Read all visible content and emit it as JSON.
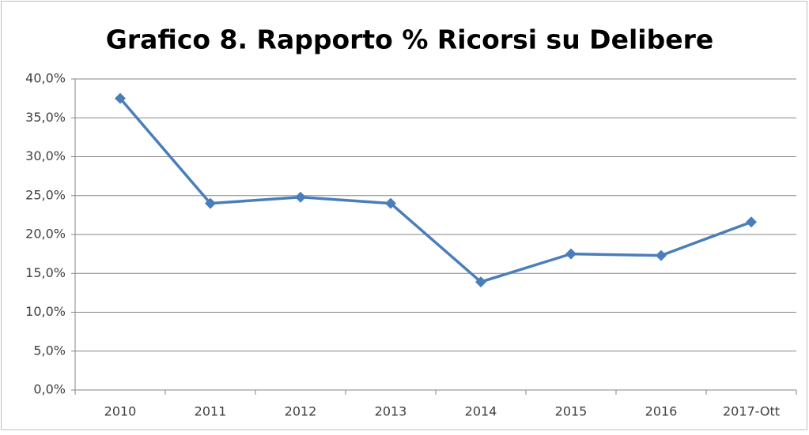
{
  "chart_data": {
    "type": "line",
    "title": "Grafico 8. Rapporto % Ricorsi su Delibere",
    "categories": [
      "2010",
      "2011",
      "2012",
      "2013",
      "2014",
      "2015",
      "2016",
      "2017-Ott"
    ],
    "values": [
      37.5,
      24.0,
      24.8,
      24.0,
      13.9,
      17.5,
      17.3,
      21.6
    ],
    "color": "#4a7ebb",
    "ylim": [
      0,
      40
    ],
    "yticks": [
      {
        "value": 0,
        "label": "0,0%"
      },
      {
        "value": 5,
        "label": "5,0%"
      },
      {
        "value": 10,
        "label": "10,0%"
      },
      {
        "value": 15,
        "label": "15,0%"
      },
      {
        "value": 20,
        "label": "20,0%"
      },
      {
        "value": 25,
        "label": "25,0%"
      },
      {
        "value": 30,
        "label": "30,0%"
      },
      {
        "value": 35,
        "label": "35,0%"
      },
      {
        "value": 40,
        "label": "40,0%"
      }
    ],
    "grid": true
  }
}
